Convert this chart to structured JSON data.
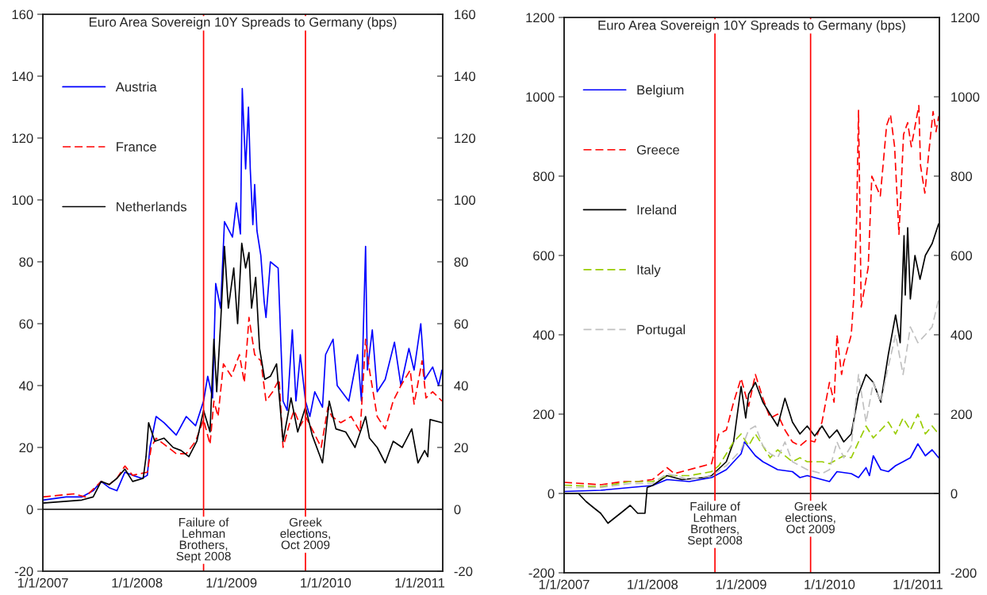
{
  "chart_data": [
    {
      "type": "line",
      "title": "Euro Area Sovereign 10Y Spreads to Germany (bps)",
      "xlim": [
        "2007-01-01",
        "2011-03-31"
      ],
      "xticks": [
        {
          "value": "2007-01-01",
          "label": "1/1/2007"
        },
        {
          "value": "2008-01-01",
          "label": "1/1/2008"
        },
        {
          "value": "2009-01-01",
          "label": "1/1/2009"
        },
        {
          "value": "2010-01-01",
          "label": "1/1/2010"
        },
        {
          "value": "2011-01-01",
          "label": "1/1/2011"
        }
      ],
      "ylim": [
        -20,
        160
      ],
      "yticks": [
        -20,
        0,
        20,
        40,
        60,
        80,
        100,
        120,
        140,
        160
      ],
      "y2lim": [
        -20,
        160
      ],
      "y2ticks": [
        -20,
        0,
        20,
        40,
        60,
        80,
        100,
        120,
        140,
        160
      ],
      "grid": false,
      "legend": "top left",
      "ref_lines": [
        {
          "axis": "y",
          "value": 0,
          "color": "#000000"
        },
        {
          "axis": "x",
          "value": "2008-09-15",
          "label": "Failure of\nLehman\nBrothers,\nSept 2008",
          "color": "#ff0000"
        },
        {
          "axis": "x",
          "value": "2009-10-15",
          "label": "Greek\nelections,\nOct 2009",
          "color": "#ff0000"
        }
      ],
      "series": [
        {
          "name": "Austria",
          "color": "#0000ff",
          "line_style": "solid",
          "x": [
            "2007-01-01",
            "2007-04-01",
            "2007-06-01",
            "2007-07-15",
            "2007-08-15",
            "2007-09-15",
            "2007-10-15",
            "2007-11-15",
            "2007-12-15",
            "2008-01-20",
            "2008-02-10",
            "2008-02-20",
            "2008-03-15",
            "2008-04-15",
            "2008-06-01",
            "2008-07-10",
            "2008-08-15",
            "2008-09-15",
            "2008-10-01",
            "2008-10-20",
            "2008-11-01",
            "2008-11-20",
            "2008-12-05",
            "2009-01-05",
            "2009-01-20",
            "2009-02-05",
            "2009-02-12",
            "2009-02-25",
            "2009-03-08",
            "2009-03-15",
            "2009-03-25",
            "2009-04-01",
            "2009-04-10",
            "2009-04-25",
            "2009-05-08",
            "2009-05-15",
            "2009-06-01",
            "2009-07-01",
            "2009-07-20",
            "2009-08-05",
            "2009-08-25",
            "2009-09-08",
            "2009-09-25",
            "2009-10-15",
            "2009-11-01",
            "2009-11-20",
            "2009-12-20",
            "2010-01-01",
            "2010-01-30",
            "2010-02-15",
            "2010-04-01",
            "2010-05-05",
            "2010-05-20",
            "2010-06-05",
            "2010-06-12",
            "2010-07-01",
            "2010-07-20",
            "2010-08-20",
            "2010-09-25",
            "2010-10-20",
            "2010-11-20",
            "2010-12-10",
            "2011-01-05",
            "2011-01-20",
            "2011-02-20",
            "2011-03-15",
            "2011-03-28"
          ],
          "values": [
            3,
            4,
            4,
            6,
            9,
            7,
            6,
            12,
            11,
            10,
            11,
            20,
            30,
            28,
            24,
            30,
            27,
            35,
            43,
            36,
            73,
            65,
            93,
            88,
            99,
            89,
            136,
            110,
            130,
            110,
            92,
            105,
            90,
            82,
            67,
            62,
            80,
            78,
            35,
            32,
            58,
            35,
            50,
            35,
            30,
            38,
            33,
            50,
            55,
            40,
            35,
            50,
            35,
            85,
            45,
            58,
            38,
            42,
            54,
            40,
            52,
            45,
            60,
            42,
            46,
            40,
            45
          ]
        },
        {
          "name": "France",
          "color": "#ff0000",
          "line_style": "dashed",
          "x": [
            "2007-01-01",
            "2007-05-01",
            "2007-06-15",
            "2007-08-15",
            "2007-09-15",
            "2007-10-15",
            "2007-11-15",
            "2007-12-15",
            "2008-02-10",
            "2008-02-25",
            "2008-03-15",
            "2008-05-01",
            "2008-06-01",
            "2008-07-10",
            "2008-08-15",
            "2008-09-15",
            "2008-10-10",
            "2008-10-25",
            "2008-11-10",
            "2008-12-01",
            "2009-01-01",
            "2009-02-01",
            "2009-02-20",
            "2009-03-10",
            "2009-04-01",
            "2009-04-25",
            "2009-05-15",
            "2009-06-10",
            "2009-07-05",
            "2009-07-20",
            "2009-08-15",
            "2009-09-01",
            "2009-09-25",
            "2009-10-15",
            "2009-11-15",
            "2009-12-15",
            "2010-01-10",
            "2010-01-25",
            "2010-03-01",
            "2010-04-10",
            "2010-05-15",
            "2010-06-05",
            "2010-06-20",
            "2010-07-20",
            "2010-08-20",
            "2010-09-20",
            "2010-10-20",
            "2010-11-25",
            "2010-12-10",
            "2011-01-10",
            "2011-01-25",
            "2011-02-20",
            "2011-03-28"
          ],
          "values": [
            4,
            5,
            4,
            9,
            8,
            10,
            14,
            11,
            12,
            20,
            23,
            20,
            18,
            18,
            22,
            29,
            21,
            35,
            30,
            47,
            43,
            50,
            41,
            62,
            50,
            48,
            35,
            38,
            42,
            20,
            28,
            32,
            27,
            30,
            25,
            20,
            33,
            30,
            28,
            30,
            25,
            55,
            45,
            30,
            26,
            35,
            40,
            45,
            34,
            48,
            36,
            38,
            35
          ]
        },
        {
          "name": "Netherlands",
          "color": "#000000",
          "line_style": "solid",
          "x": [
            "2007-01-01",
            "2007-06-01",
            "2007-07-15",
            "2007-08-15",
            "2007-09-15",
            "2007-10-15",
            "2007-11-15",
            "2007-12-15",
            "2008-01-25",
            "2008-02-05",
            "2008-02-15",
            "2008-03-10",
            "2008-04-15",
            "2008-05-20",
            "2008-06-20",
            "2008-07-20",
            "2008-08-20",
            "2008-09-15",
            "2008-10-10",
            "2008-10-25",
            "2008-11-05",
            "2008-11-20",
            "2008-12-05",
            "2008-12-20",
            "2009-01-10",
            "2009-01-25",
            "2009-02-10",
            "2009-02-25",
            "2009-03-10",
            "2009-03-20",
            "2009-04-05",
            "2009-04-20",
            "2009-05-10",
            "2009-06-01",
            "2009-06-25",
            "2009-07-20",
            "2009-08-20",
            "2009-09-15",
            "2009-10-15",
            "2009-11-10",
            "2009-12-20",
            "2010-01-15",
            "2010-02-10",
            "2010-03-20",
            "2010-04-25",
            "2010-06-05",
            "2010-06-20",
            "2010-07-20",
            "2010-08-20",
            "2010-09-20",
            "2010-10-25",
            "2010-12-01",
            "2010-12-25",
            "2011-01-20",
            "2011-02-01",
            "2011-02-10",
            "2011-03-28"
          ],
          "values": [
            2,
            3,
            4,
            9,
            8,
            10,
            13,
            9,
            10,
            17,
            28,
            22,
            23,
            20,
            19,
            17,
            22,
            32,
            25,
            55,
            38,
            60,
            85,
            65,
            78,
            60,
            86,
            78,
            83,
            65,
            75,
            52,
            42,
            43,
            47,
            22,
            36,
            25,
            33,
            24,
            15,
            35,
            26,
            25,
            20,
            30,
            23,
            20,
            15,
            22,
            20,
            26,
            15,
            19,
            17,
            29,
            28
          ]
        }
      ]
    },
    {
      "type": "line",
      "title": "Euro Area Sovereign 10Y Spreads to Germany (bps)",
      "xlim": [
        "2007-01-01",
        "2011-03-31"
      ],
      "xticks": [
        {
          "value": "2007-01-01",
          "label": "1/1/2007"
        },
        {
          "value": "2008-01-01",
          "label": "1/1/2008"
        },
        {
          "value": "2009-01-01",
          "label": "1/1/2009"
        },
        {
          "value": "2010-01-01",
          "label": "1/1/2010"
        },
        {
          "value": "2011-01-01",
          "label": "1/1/2011"
        }
      ],
      "ylim": [
        -200,
        1200
      ],
      "yticks": [
        -200,
        0,
        200,
        400,
        600,
        800,
        1000,
        1200
      ],
      "y2lim": [
        -200,
        1200
      ],
      "y2ticks": [
        -200,
        0,
        200,
        400,
        600,
        800,
        1000,
        1200
      ],
      "grid": false,
      "legend": "top left",
      "ref_lines": [
        {
          "axis": "y",
          "value": 0,
          "color": "#000000"
        },
        {
          "axis": "x",
          "value": "2008-09-15",
          "label": "Failure of\nLehman\nBrothers,\nSept 2008",
          "color": "#ff0000"
        },
        {
          "axis": "x",
          "value": "2009-10-15",
          "label": "Greek\nelections,\nOct 2009",
          "color": "#ff0000"
        }
      ],
      "series": [
        {
          "name": "Belgium",
          "color": "#0000ff",
          "line_style": "solid",
          "x": [
            "2007-01-01",
            "2007-06-01",
            "2007-10-01",
            "2008-01-01",
            "2008-03-01",
            "2008-06-01",
            "2008-09-01",
            "2008-11-01",
            "2009-01-01",
            "2009-01-15",
            "2009-03-01",
            "2009-04-01",
            "2009-06-01",
            "2009-08-01",
            "2009-09-01",
            "2009-10-01",
            "2009-12-01",
            "2010-01-01",
            "2010-02-01",
            "2010-04-01",
            "2010-05-01",
            "2010-06-01",
            "2010-06-15",
            "2010-07-01",
            "2010-08-01",
            "2010-09-01",
            "2010-10-01",
            "2010-11-01",
            "2010-12-01",
            "2011-01-01",
            "2011-02-01",
            "2011-03-01",
            "2011-03-28"
          ],
          "values": [
            5,
            8,
            15,
            20,
            35,
            30,
            40,
            60,
            100,
            130,
            95,
            80,
            60,
            55,
            40,
            45,
            35,
            30,
            55,
            50,
            40,
            65,
            45,
            95,
            60,
            55,
            70,
            80,
            90,
            125,
            95,
            110,
            90
          ]
        },
        {
          "name": "Greece",
          "color": "#ff0000",
          "line_style": "dashed",
          "x": [
            "2007-01-01",
            "2007-06-01",
            "2007-09-01",
            "2007-11-01",
            "2008-01-01",
            "2008-03-01",
            "2008-04-01",
            "2008-07-01",
            "2008-09-01",
            "2008-10-01",
            "2008-11-01",
            "2008-12-01",
            "2009-01-01",
            "2009-02-01",
            "2009-03-01",
            "2009-04-01",
            "2009-05-01",
            "2009-06-01",
            "2009-07-01",
            "2009-08-01",
            "2009-09-01",
            "2009-10-01",
            "2009-11-01",
            "2009-12-01",
            "2010-01-01",
            "2010-01-20",
            "2010-02-01",
            "2010-02-20",
            "2010-03-01",
            "2010-04-01",
            "2010-04-12",
            "2010-04-23",
            "2010-05-01",
            "2010-05-12",
            "2010-06-10",
            "2010-06-25",
            "2010-07-30",
            "2010-08-25",
            "2010-09-10",
            "2010-09-27",
            "2010-10-15",
            "2010-11-03",
            "2010-11-20",
            "2010-12-05",
            "2011-01-05",
            "2011-01-12",
            "2011-01-30",
            "2011-02-15",
            "2011-03-05",
            "2011-03-17",
            "2011-03-28"
          ],
          "values": [
            28,
            22,
            30,
            30,
            35,
            65,
            50,
            65,
            75,
            150,
            160,
            230,
            290,
            220,
            300,
            240,
            190,
            200,
            160,
            130,
            120,
            135,
            130,
            180,
            280,
            230,
            400,
            300,
            330,
            400,
            500,
            688,
            966,
            470,
            570,
            800,
            750,
            928,
            955,
            874,
            653,
            905,
            935,
            874,
            978,
            827,
            757,
            858,
            963,
            912,
            951
          ]
        },
        {
          "name": "Ireland",
          "color": "#000000",
          "line_style": "solid",
          "x": [
            "2007-01-01",
            "2007-03-01",
            "2007-04-01",
            "2007-05-01",
            "2007-06-01",
            "2007-07-01",
            "2007-08-01",
            "2007-09-01",
            "2007-10-01",
            "2007-11-01",
            "2007-12-01",
            "2007-12-10",
            "2008-01-01",
            "2008-03-01",
            "2008-05-01",
            "2008-08-01",
            "2008-09-01",
            "2008-11-01",
            "2008-12-01",
            "2009-01-01",
            "2009-01-20",
            "2009-02-01",
            "2009-03-01",
            "2009-04-01",
            "2009-05-01",
            "2009-06-01",
            "2009-07-01",
            "2009-08-01",
            "2009-09-01",
            "2009-10-01",
            "2009-11-01",
            "2009-12-01",
            "2010-01-01",
            "2010-02-01",
            "2010-03-01",
            "2010-04-01",
            "2010-05-01",
            "2010-06-01",
            "2010-07-01",
            "2010-08-01",
            "2010-09-01",
            "2010-10-01",
            "2010-10-20",
            "2010-11-05",
            "2010-11-10",
            "2010-11-20",
            "2010-12-01",
            "2010-12-20",
            "2011-01-10",
            "2011-02-01",
            "2011-03-01",
            "2011-03-28"
          ],
          "values": [
            0,
            0,
            -20,
            -35,
            -50,
            -75,
            -60,
            -45,
            -30,
            -50,
            -50,
            15,
            20,
            45,
            35,
            40,
            45,
            80,
            130,
            270,
            190,
            250,
            280,
            230,
            200,
            170,
            240,
            180,
            150,
            170,
            145,
            170,
            140,
            160,
            130,
            150,
            250,
            300,
            280,
            230,
            350,
            450,
            380,
            650,
            500,
            670,
            490,
            600,
            540,
            600,
            630,
            680
          ]
        },
        {
          "name": "Italy",
          "color": "#99cc00",
          "line_style": "dashed",
          "x": [
            "2007-01-01",
            "2007-06-01",
            "2007-10-01",
            "2008-01-01",
            "2008-03-01",
            "2008-06-01",
            "2008-09-01",
            "2008-10-01",
            "2008-11-01",
            "2008-12-01",
            "2009-01-01",
            "2009-02-01",
            "2009-03-01",
            "2009-04-01",
            "2009-05-01",
            "2009-06-01",
            "2009-08-01",
            "2009-09-01",
            "2009-10-01",
            "2009-12-01",
            "2010-01-01",
            "2010-03-01",
            "2010-04-01",
            "2010-05-01",
            "2010-06-01",
            "2010-07-01",
            "2010-08-01",
            "2010-09-01",
            "2010-10-01",
            "2010-11-01",
            "2010-12-01",
            "2011-01-01",
            "2011-02-01",
            "2011-03-01",
            "2011-03-28"
          ],
          "values": [
            21,
            17,
            30,
            30,
            45,
            45,
            55,
            70,
            100,
            130,
            150,
            120,
            150,
            120,
            90,
            110,
            80,
            90,
            80,
            80,
            75,
            95,
            90,
            130,
            170,
            140,
            160,
            180,
            150,
            190,
            160,
            200,
            150,
            170,
            150
          ]
        },
        {
          "name": "Portugal",
          "color": "#c0c0c0",
          "line_style": "dashed",
          "x": [
            "2007-01-01",
            "2007-06-01",
            "2007-10-01",
            "2008-01-01",
            "2008-03-01",
            "2008-06-01",
            "2008-09-01",
            "2008-11-01",
            "2009-01-01",
            "2009-02-01",
            "2009-03-01",
            "2009-04-01",
            "2009-05-01",
            "2009-06-01",
            "2009-07-01",
            "2009-08-01",
            "2009-10-01",
            "2009-12-01",
            "2010-01-01",
            "2010-02-01",
            "2010-03-01",
            "2010-04-01",
            "2010-05-01",
            "2010-06-01",
            "2010-07-01",
            "2010-08-01",
            "2010-09-01",
            "2010-10-01",
            "2010-11-01",
            "2010-12-01",
            "2011-01-01",
            "2011-02-01",
            "2011-03-01",
            "2011-03-28"
          ],
          "values": [
            15,
            15,
            25,
            25,
            50,
            35,
            45,
            70,
            110,
            160,
            170,
            120,
            100,
            90,
            130,
            80,
            60,
            50,
            60,
            130,
            90,
            120,
            300,
            180,
            280,
            230,
            320,
            400,
            300,
            420,
            380,
            400,
            420,
            490
          ]
        }
      ]
    }
  ]
}
